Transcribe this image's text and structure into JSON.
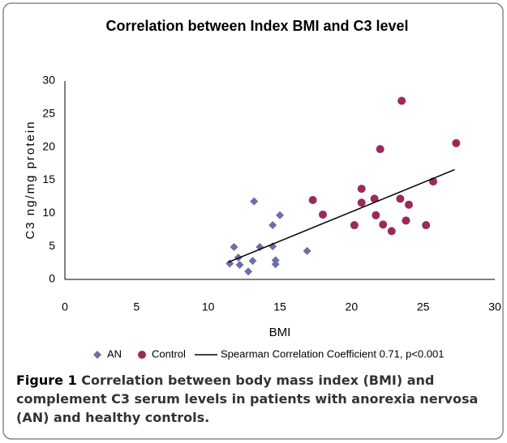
{
  "chart_data": {
    "type": "scatter",
    "title": "Correlation between Index BMI and C3 level",
    "x_label": "BMI",
    "y_label": "C3 ng/mg protein",
    "xlim": [
      0,
      30
    ],
    "xticks": [
      0,
      5,
      10,
      15,
      20,
      25,
      30
    ],
    "ylim": [
      0,
      30
    ],
    "yticks": [
      0,
      5,
      10,
      15,
      20,
      25,
      30
    ],
    "grid": false,
    "legend": "bottom",
    "series": [
      {
        "name": "AN",
        "color": "#6b70a8",
        "marker": "diamond",
        "x": [
          11.5,
          11.8,
          12.1,
          12.2,
          12.8,
          13.1,
          13.2,
          13.6,
          14.5,
          14.5,
          14.7,
          14.7,
          15.0,
          16.9
        ],
        "values": [
          2.4,
          4.9,
          3.3,
          2.2,
          1.2,
          2.8,
          11.8,
          4.9,
          5.0,
          8.2,
          2.9,
          2.3,
          9.7,
          4.3
        ]
      },
      {
        "name": "Control",
        "color": "#9b2a5c",
        "marker": "circle",
        "x": [
          17.3,
          18.0,
          20.2,
          20.7,
          20.7,
          21.6,
          21.7,
          22.0,
          22.2,
          22.8,
          23.4,
          23.5,
          23.8,
          24.0,
          25.2,
          25.7,
          27.3
        ],
        "values": [
          12.0,
          9.8,
          8.2,
          13.7,
          11.6,
          12.2,
          9.7,
          19.7,
          8.3,
          7.3,
          12.2,
          27.0,
          8.9,
          11.3,
          8.2,
          14.8,
          20.6
        ]
      },
      {
        "name": "Spearman Correlation Coefficient 0.71, p<0.001",
        "color": "#000000",
        "marker": "line",
        "x": [
          11.4,
          27.2
        ],
        "values": [
          2.6,
          16.6
        ]
      }
    ]
  },
  "caption": {
    "label": "Figure 1",
    "text": "Correlation between body mass index (BMI) and complement C3 serum levels in patients with anorexia nervosa (AN) and healthy controls."
  }
}
